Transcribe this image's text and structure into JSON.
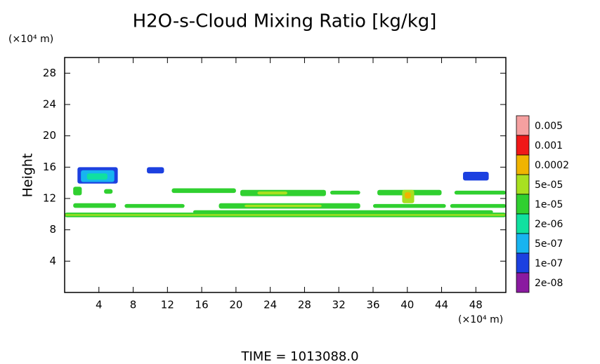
{
  "chart_data": {
    "type": "contour",
    "title": "H2O-s-Cloud Mixing Ratio [kg/kg]",
    "y_unit": "(×10⁴ m)",
    "x_unit": "(×10⁴ m)",
    "ylabel": "Height",
    "footer": "TIME = 1013088.0",
    "xlim": [
      0,
      51.5
    ],
    "ylim": [
      0,
      30
    ],
    "xticks": [
      4,
      8,
      12,
      16,
      20,
      24,
      28,
      32,
      36,
      40,
      44,
      48
    ],
    "yticks": [
      4,
      8,
      12,
      16,
      20,
      24,
      28
    ],
    "levels": [
      {
        "value": 0.005,
        "label": "0.005",
        "color": "#f5a0a0"
      },
      {
        "value": 0.001,
        "label": "0.001",
        "color": "#f01818"
      },
      {
        "value": 0.0002,
        "label": "0.0002",
        "color": "#f0b400"
      },
      {
        "value": 5e-05,
        "label": "5e-05",
        "color": "#a8e020"
      },
      {
        "value": 1e-05,
        "label": "1e-05",
        "color": "#30d030"
      },
      {
        "value": 2e-06,
        "label": "2e-06",
        "color": "#10e0a0"
      },
      {
        "value": 5e-07,
        "label": "5e-07",
        "color": "#18b4f0"
      },
      {
        "value": 1e-07,
        "label": "1e-07",
        "color": "#1c40e0"
      },
      {
        "value": 2e-08,
        "label": "2e-08",
        "color": "#8a1aa0"
      }
    ],
    "regions": [
      {
        "x": [
          0,
          51.5
        ],
        "y": [
          9.6,
          10.2
        ],
        "value": 1e-05
      },
      {
        "x": [
          0,
          51.5
        ],
        "y": [
          9.8,
          10.0
        ],
        "value": 5e-05
      },
      {
        "x": [
          1.5,
          6.2
        ],
        "y": [
          13.9,
          16.0
        ],
        "value": 1e-07
      },
      {
        "x": [
          1.9,
          5.8
        ],
        "y": [
          14.1,
          15.6
        ],
        "value": 5e-07
      },
      {
        "x": [
          2.6,
          5.0
        ],
        "y": [
          14.4,
          15.2
        ],
        "value": 2e-06
      },
      {
        "x": [
          9.6,
          11.6
        ],
        "y": [
          15.2,
          16.0
        ],
        "value": 1e-07
      },
      {
        "x": [
          46.5,
          49.5
        ],
        "y": [
          14.3,
          15.4
        ],
        "value": 1e-07
      },
      {
        "x": [
          1.0,
          2.0
        ],
        "y": [
          12.4,
          13.5
        ],
        "value": 1e-05
      },
      {
        "x": [
          4.6,
          5.6
        ],
        "y": [
          12.6,
          13.2
        ],
        "value": 1e-05
      },
      {
        "x": [
          12.5,
          20.0
        ],
        "y": [
          12.7,
          13.3
        ],
        "value": 1e-05
      },
      {
        "x": [
          20.5,
          30.5
        ],
        "y": [
          12.3,
          13.1
        ],
        "value": 1e-05
      },
      {
        "x": [
          22.5,
          26.0
        ],
        "y": [
          12.5,
          12.9
        ],
        "value": 5e-05
      },
      {
        "x": [
          31.0,
          34.5
        ],
        "y": [
          12.5,
          13.0
        ],
        "value": 1e-05
      },
      {
        "x": [
          36.5,
          44.0
        ],
        "y": [
          12.4,
          13.1
        ],
        "value": 1e-05
      },
      {
        "x": [
          45.5,
          51.5
        ],
        "y": [
          12.5,
          13.0
        ],
        "value": 1e-05
      },
      {
        "x": [
          1.0,
          6.0
        ],
        "y": [
          10.8,
          11.4
        ],
        "value": 1e-05
      },
      {
        "x": [
          7.0,
          14.0
        ],
        "y": [
          10.8,
          11.3
        ],
        "value": 1e-05
      },
      {
        "x": [
          18.0,
          34.5
        ],
        "y": [
          10.7,
          11.4
        ],
        "value": 1e-05
      },
      {
        "x": [
          21.0,
          30.0
        ],
        "y": [
          10.9,
          11.2
        ],
        "value": 5e-05
      },
      {
        "x": [
          36.0,
          44.5
        ],
        "y": [
          10.8,
          11.3
        ],
        "value": 1e-05
      },
      {
        "x": [
          45.0,
          51.5
        ],
        "y": [
          10.8,
          11.3
        ],
        "value": 1e-05
      },
      {
        "x": [
          15.0,
          50.0
        ],
        "y": [
          10.1,
          10.5
        ],
        "value": 1e-05
      },
      {
        "x": [
          39.4,
          40.8
        ],
        "y": [
          11.4,
          13.1
        ],
        "value": 5e-05
      },
      {
        "x": [
          39.7,
          40.4
        ],
        "y": [
          12.0,
          12.8
        ],
        "value": 0.0002
      }
    ]
  }
}
